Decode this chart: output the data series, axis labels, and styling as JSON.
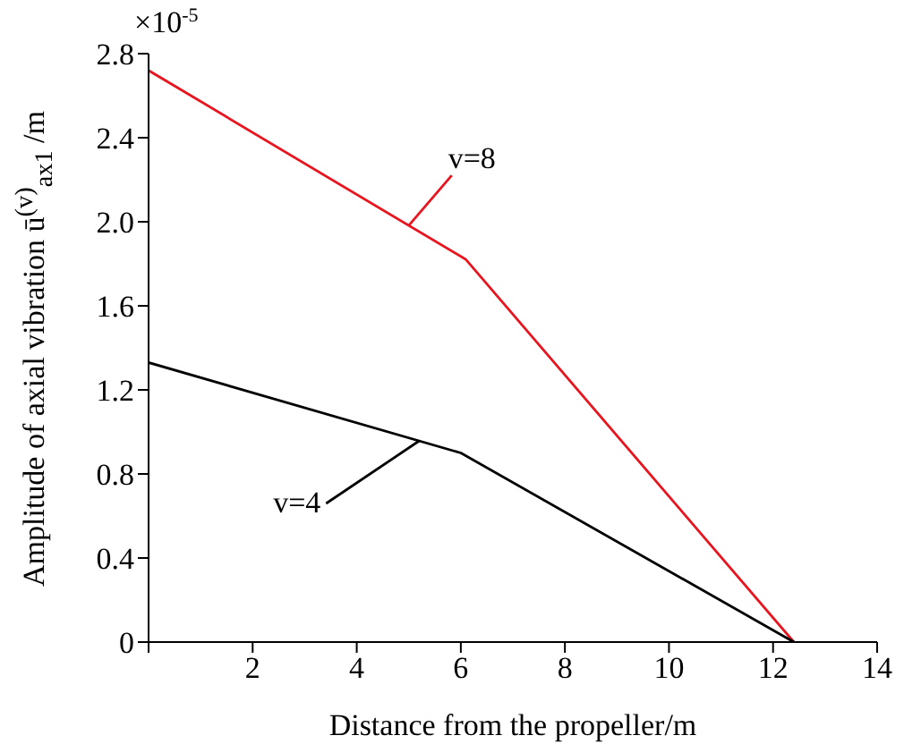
{
  "chart_data": {
    "type": "line",
    "xlabel": "Distance from the propeller/m",
    "ylabel": "Amplitude of axial vibration ū$^{(v)}$$_{ax1}$ /m",
    "annotations": [
      "×10$^{-5}$"
    ],
    "series": [
      {
        "name": "v=8",
        "color": "#e8141e",
        "x": [
          0,
          6.1,
          12.4
        ],
        "values": [
          2.72,
          1.82,
          0
        ]
      },
      {
        "name": "v=4",
        "color": "#000000",
        "x": [
          0,
          6,
          12.4
        ],
        "values": [
          1.33,
          0.9,
          0
        ]
      }
    ],
    "xlim": [
      0,
      14
    ],
    "xticks": [
      {
        "value": 0,
        "label": null
      },
      2,
      4,
      6,
      8,
      10,
      12,
      14
    ],
    "ylim": [
      0,
      2.8
    ],
    "yticks": [
      0,
      {
        "value": 0.4,
        "label": "0.4"
      },
      {
        "value": 0.8,
        "label": "0.8"
      },
      {
        "value": 1.2,
        "label": "1.2"
      },
      {
        "value": 1.6,
        "label": "1.6"
      },
      {
        "value": 2.0,
        "label": "2.0"
      },
      {
        "value": 2.4,
        "label": "2.4"
      },
      {
        "value": 2.8,
        "label": "2.8"
      }
    ],
    "grid": false,
    "legend": false,
    "marker": "none",
    "line_style": "solid"
  }
}
